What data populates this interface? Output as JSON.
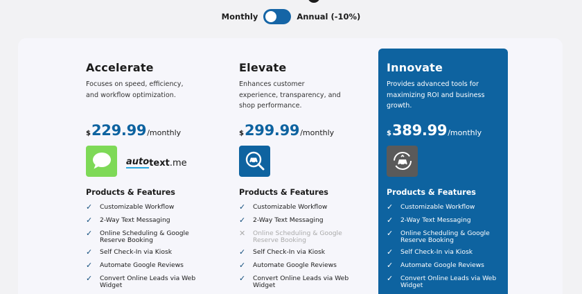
{
  "billing_toggle": {
    "monthly_label": "Monthly",
    "annual_label": "Annual (-10%)"
  },
  "features_heading": "Products & Features",
  "plans": [
    {
      "name": "Accelerate",
      "description": "Focuses on speed, efficiency, and workflow optimization.",
      "currency": "$",
      "price": "229.99",
      "period": "/monthly",
      "logos": [
        "messages-app-icon",
        "autotext-logo"
      ],
      "autotext": {
        "part1": "auto",
        "part2": "text",
        "part3": ".me"
      },
      "features": [
        {
          "label": "Customizable Workflow",
          "included": true
        },
        {
          "label": "2-Way Text Messaging",
          "included": true
        },
        {
          "label": "Online Scheduling & Google Reserve Booking",
          "included": true
        },
        {
          "label": "Self Check-In via Kiosk",
          "included": true
        },
        {
          "label": "Automate Google Reviews",
          "included": true
        },
        {
          "label": "Convert Online Leads via Web Widget",
          "included": true
        }
      ]
    },
    {
      "name": "Elevate",
      "description": "Enhances customer experience, transparency, and shop performance.",
      "currency": "$",
      "price": "299.99",
      "period": "/monthly",
      "logos": [
        "car-inspection-icon"
      ],
      "features": [
        {
          "label": "Customizable Workflow",
          "included": true
        },
        {
          "label": "2-Way Text Messaging",
          "included": true
        },
        {
          "label": "Online Scheduling & Google Reserve Booking",
          "included": false
        },
        {
          "label": "Self Check-In via Kiosk",
          "included": true
        },
        {
          "label": "Automate Google Reviews",
          "included": true
        },
        {
          "label": "Convert Online Leads via Web Widget",
          "included": true
        }
      ]
    },
    {
      "name": "Innovate",
      "description": "Provides advanced tools for maximizing ROI and business growth.",
      "currency": "$",
      "price": "389.99",
      "period": "/monthly",
      "logos": [
        "car-cycle-icon"
      ],
      "features": [
        {
          "label": "Customizable Workflow",
          "included": true
        },
        {
          "label": "2-Way Text Messaging",
          "included": true
        },
        {
          "label": "Online Scheduling & Google Reserve Booking",
          "included": true
        },
        {
          "label": "Self Check-In via Kiosk",
          "included": true
        },
        {
          "label": "Automate Google Reviews",
          "included": true
        },
        {
          "label": "Convert Online Leads via Web Widget",
          "included": true
        }
      ]
    }
  ],
  "colors": {
    "primary": "#0e63a0",
    "background": "#f2f2f4",
    "panel": "#f6f6fb",
    "messages_green": "#7ed957"
  }
}
